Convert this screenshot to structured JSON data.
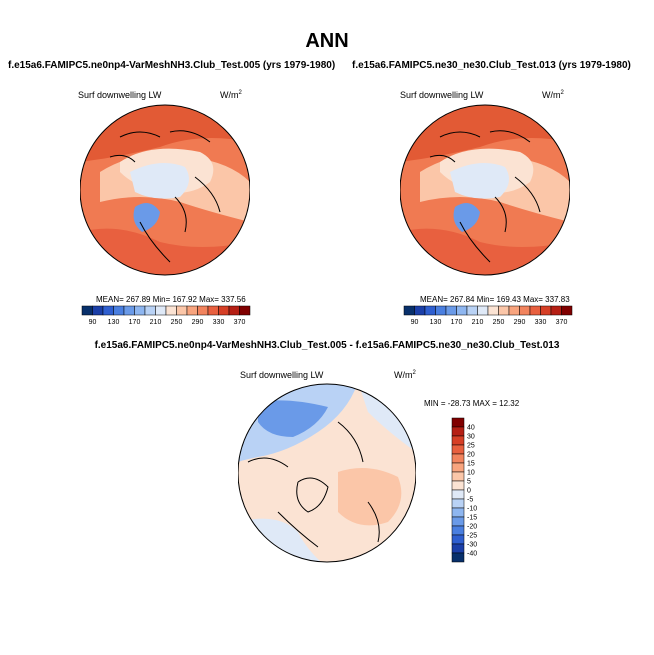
{
  "main_title": "ANN",
  "panels": [
    {
      "title": "f.e15a6.FAMIPC5.ne0np4-VarMeshNH3.Club_Test.005 (yrs 1979-1980)",
      "variable": "Surf downwelling LW",
      "units_base": "W/m",
      "units_exp": "2",
      "stats": "MEAN= 267.89  Min= 167.92  Max= 337.56"
    },
    {
      "title": "f.e15a6.FAMIPC5.ne30_ne30.Club_Test.013 (yrs 1979-1980)",
      "variable": "Surf downwelling LW",
      "units_base": "W/m",
      "units_exp": "2",
      "stats": "MEAN= 267.84  Min= 169.43  Max= 337.83"
    },
    {
      "title": "f.e15a6.FAMIPC5.ne0np4-VarMeshNH3.Club_Test.005 - f.e15a6.FAMIPC5.ne30_ne30.Club_Test.013",
      "variable": "Surf downwelling LW",
      "units_base": "W/m",
      "units_exp": "2",
      "stats": "MIN = -28.73 MAX =  12.32"
    }
  ],
  "chart_data": [
    {
      "type": "heatmap",
      "projection": "north-polar-stereographic",
      "title": "f.e15a6.FAMIPC5.ne0np4-VarMeshNH3.Club_Test.005 (yrs 1979-1980)",
      "variable": "Surf downwelling LW",
      "units": "W/m2",
      "mean": 267.89,
      "min": 167.92,
      "max": 337.56,
      "colorbar_labels": [
        "90",
        "130",
        "170",
        "210",
        "250",
        "290",
        "330",
        "370"
      ],
      "colorbar_colors": [
        "#08306b",
        "#1b3fa8",
        "#2f5fd0",
        "#4a7fe0",
        "#6a9ae8",
        "#8eb6f0",
        "#b9d2f5",
        "#dfe9f7",
        "#fbe3d3",
        "#fbc6a8",
        "#f8a47e",
        "#f2845e",
        "#e8603f",
        "#d63f26",
        "#b51f14",
        "#800000"
      ]
    },
    {
      "type": "heatmap",
      "projection": "north-polar-stereographic",
      "title": "f.e15a6.FAMIPC5.ne30_ne30.Club_Test.013 (yrs 1979-1980)",
      "variable": "Surf downwelling LW",
      "units": "W/m2",
      "mean": 267.84,
      "min": 169.43,
      "max": 337.83,
      "colorbar_labels": [
        "90",
        "130",
        "170",
        "210",
        "250",
        "290",
        "330",
        "370"
      ],
      "colorbar_colors": [
        "#08306b",
        "#1b3fa8",
        "#2f5fd0",
        "#4a7fe0",
        "#6a9ae8",
        "#8eb6f0",
        "#b9d2f5",
        "#dfe9f7",
        "#fbe3d3",
        "#fbc6a8",
        "#f8a47e",
        "#f2845e",
        "#e8603f",
        "#d63f26",
        "#b51f14",
        "#800000"
      ]
    },
    {
      "type": "heatmap",
      "projection": "north-polar-stereographic",
      "title": "f.e15a6.FAMIPC5.ne0np4-VarMeshNH3.Club_Test.005 - f.e15a6.FAMIPC5.ne30_ne30.Club_Test.013",
      "variable": "Surf downwelling LW",
      "units": "W/m2",
      "min": -28.73,
      "max": 12.32,
      "colorbar_labels": [
        "40",
        "30",
        "25",
        "20",
        "15",
        "10",
        "5",
        "0",
        "-5",
        "-10",
        "-15",
        "-20",
        "-25",
        "-30",
        "-40"
      ],
      "colorbar_colors": [
        "#800000",
        "#b51f14",
        "#d63f26",
        "#e8603f",
        "#f2845e",
        "#f8a47e",
        "#fbc6a8",
        "#fbe3d3",
        "#dfe9f7",
        "#b9d2f5",
        "#8eb6f0",
        "#6a9ae8",
        "#4a7fe0",
        "#2f5fd0",
        "#1b3fa8",
        "#08306b"
      ]
    }
  ]
}
